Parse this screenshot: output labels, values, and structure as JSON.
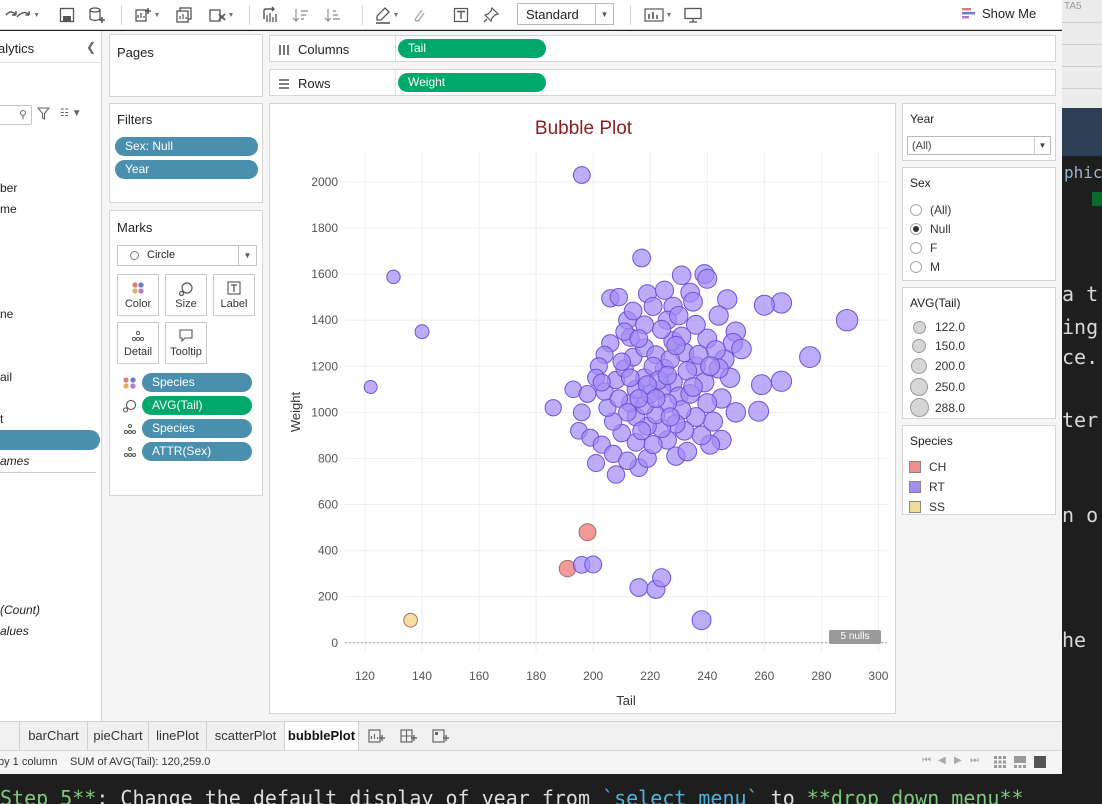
{
  "toolbar": {
    "view_mode": "Standard",
    "show_me": "Show Me"
  },
  "data_pane": {
    "title": "alytics",
    "fields": [
      {
        "label": "ber",
        "top": 150
      },
      {
        "label": "me",
        "top": 171
      },
      {
        "label": "ne",
        "top": 276
      },
      {
        "label": "ail",
        "top": 339
      },
      {
        "label": "t",
        "top": 381
      }
    ],
    "names_label": "ames",
    "count_label": "(Count)",
    "values_label": "alues"
  },
  "pages": {
    "title": "Pages"
  },
  "filters": {
    "title": "Filters",
    "pills": [
      "Sex: Null",
      "Year"
    ]
  },
  "marks": {
    "title": "Marks",
    "mark_type": "Circle",
    "buttons": {
      "color": "Color",
      "size": "Size",
      "label": "Label",
      "detail": "Detail",
      "tooltip": "Tooltip"
    },
    "pills": [
      "Species",
      "AVG(Tail)",
      "Species",
      "ATTR(Sex)"
    ]
  },
  "columns_shelf": {
    "label": "Columns",
    "pill": "Tail"
  },
  "rows_shelf": {
    "label": "Rows",
    "pill": "Weight"
  },
  "year_filter": {
    "title": "Year",
    "selected": "(All)"
  },
  "sex_filter": {
    "title": "Sex",
    "options": [
      "(All)",
      "Null",
      "F",
      "M"
    ],
    "selected": "Null"
  },
  "size_legend": {
    "title": "AVG(Tail)",
    "items": [
      "122.0",
      "150.0",
      "200.0",
      "250.0",
      "288.0"
    ]
  },
  "species_legend": {
    "title": "Species",
    "items": [
      {
        "label": "CH",
        "color": "#f28e8e"
      },
      {
        "label": "RT",
        "color": "#a38cf4"
      },
      {
        "label": "SS",
        "color": "#f3dc96"
      }
    ]
  },
  "nulls_badge": "5 nulls",
  "tabs": [
    "barChart",
    "pieChart",
    "linePlot",
    "scatterPlot",
    "bubblePlot"
  ],
  "active_tab": "bubblePlot",
  "status": {
    "left": "by 1 column",
    "sum": "SUM of AVG(Tail): 120,259.0"
  },
  "external": {
    "top_fragment": "TA5",
    "band_word": "phics",
    "lines": [
      "a t",
      "ing",
      "ce.",
      "ter",
      "n o",
      "he "
    ],
    "bottom_prefix": "Step 5**",
    "bottom_mid": ": Change the default display of year from ",
    "bottom_code": "`select menu`",
    "bottom_to": " to ",
    "bottom_bold": "**drop down menu**"
  },
  "chart_data": {
    "type": "scatter",
    "title": "Bubble Plot",
    "xlabel": "Tail",
    "ylabel": "Weight",
    "xlim": [
      113,
      303
    ],
    "ylim": [
      -40,
      2130
    ],
    "xticks": [
      120,
      140,
      160,
      180,
      200,
      220,
      240,
      260,
      280,
      300
    ],
    "yticks": [
      0,
      200,
      400,
      600,
      800,
      1000,
      1200,
      1400,
      1600,
      1800,
      2000
    ],
    "grid": true,
    "size_field": "AVG(Tail)",
    "color_field": "Species",
    "series": [
      {
        "name": "CH",
        "color": "#f28e8e",
        "points": [
          [
            198,
            480
          ],
          [
            191,
            322
          ]
        ]
      },
      {
        "name": "SS",
        "color": "#f3dc96",
        "points": [
          [
            136,
            98
          ]
        ]
      },
      {
        "name": "RT",
        "color": "#a38cf4",
        "points": [
          [
            122,
            1110
          ],
          [
            130,
            1588
          ],
          [
            140,
            1350
          ],
          [
            196,
            2030
          ],
          [
            217,
            1670
          ],
          [
            289,
            1400
          ],
          [
            276,
            1240
          ],
          [
            266,
            1475
          ],
          [
            260,
            1465
          ],
          [
            266,
            1135
          ],
          [
            259,
            1120
          ],
          [
            250,
            1000
          ],
          [
            258,
            1005
          ],
          [
            245,
            880
          ],
          [
            241,
            860
          ],
          [
            238,
            98
          ],
          [
            216,
            240
          ],
          [
            222,
            232
          ],
          [
            224,
            282
          ],
          [
            196,
            338
          ],
          [
            200,
            340
          ],
          [
            186,
            1020
          ],
          [
            193,
            1100
          ],
          [
            201,
            780
          ],
          [
            208,
            730
          ],
          [
            216,
            760
          ],
          [
            229,
            810
          ],
          [
            233,
            830
          ],
          [
            231,
            1595
          ],
          [
            239,
            1600
          ],
          [
            240,
            1580
          ],
          [
            206,
            1495
          ],
          [
            209,
            1500
          ],
          [
            219,
            1515
          ],
          [
            225,
            1530
          ],
          [
            234,
            1520
          ],
          [
            247,
            1490
          ],
          [
            235,
            1480
          ],
          [
            228,
            1460
          ],
          [
            212,
            1400
          ],
          [
            244,
            1420
          ],
          [
            250,
            1350
          ],
          [
            249,
            1300
          ],
          [
            252,
            1275
          ],
          [
            213,
            1325
          ],
          [
            206,
            1300
          ],
          [
            204,
            1250
          ],
          [
            202,
            1200
          ],
          [
            201,
            1150
          ],
          [
            198,
            1080
          ],
          [
            196,
            1000
          ],
          [
            195,
            920
          ],
          [
            199,
            890
          ],
          [
            203,
            860
          ],
          [
            207,
            820
          ],
          [
            212,
            790
          ],
          [
            219,
            800
          ],
          [
            238,
            900
          ],
          [
            242,
            960
          ],
          [
            245,
            1060
          ],
          [
            248,
            1150
          ],
          [
            246,
            1230
          ],
          [
            240,
            1320
          ],
          [
            236,
            1380
          ],
          [
            226,
            1400
          ],
          [
            218,
            1380
          ],
          [
            214,
            1440
          ],
          [
            221,
            1460
          ],
          [
            230,
            1420
          ],
          [
            228,
            1310
          ],
          [
            232,
            1260
          ],
          [
            236,
            1200
          ],
          [
            239,
            1130
          ],
          [
            240,
            1040
          ],
          [
            236,
            980
          ],
          [
            232,
            920
          ],
          [
            226,
            880
          ],
          [
            221,
            860
          ],
          [
            215,
            870
          ],
          [
            210,
            910
          ],
          [
            207,
            960
          ],
          [
            205,
            1020
          ],
          [
            204,
            1090
          ],
          [
            208,
            1140
          ],
          [
            211,
            1190
          ],
          [
            214,
            1240
          ],
          [
            218,
            1280
          ],
          [
            222,
            1250
          ],
          [
            225,
            1190
          ],
          [
            228,
            1130
          ],
          [
            230,
            1070
          ],
          [
            231,
            1010
          ],
          [
            229,
            950
          ],
          [
            224,
            930
          ],
          [
            219,
            940
          ],
          [
            215,
            980
          ],
          [
            213,
            1040
          ],
          [
            215,
            1100
          ],
          [
            218,
            1150
          ],
          [
            221,
            1200
          ],
          [
            224,
            1100
          ],
          [
            226,
            1040
          ],
          [
            222,
            990
          ],
          [
            218,
            1030
          ],
          [
            220,
            1080
          ],
          [
            223,
            1140
          ],
          [
            227,
            1230
          ],
          [
            233,
            1180
          ],
          [
            234,
            1080
          ],
          [
            235,
            1110
          ],
          [
            211,
            1350
          ],
          [
            216,
            1320
          ],
          [
            224,
            1360
          ],
          [
            231,
            1330
          ],
          [
            243,
            1270
          ],
          [
            244,
            1190
          ],
          [
            209,
            1060
          ],
          [
            212,
            1000
          ],
          [
            210,
            1220
          ],
          [
            217,
            920
          ],
          [
            227,
            980
          ],
          [
            229,
            1290
          ],
          [
            237,
            1250
          ],
          [
            241,
            1200
          ],
          [
            203,
            1130
          ],
          [
            226,
            1160
          ],
          [
            219,
            1120
          ],
          [
            222,
            1060
          ],
          [
            216,
            1060
          ],
          [
            213,
            1150
          ]
        ]
      }
    ]
  }
}
